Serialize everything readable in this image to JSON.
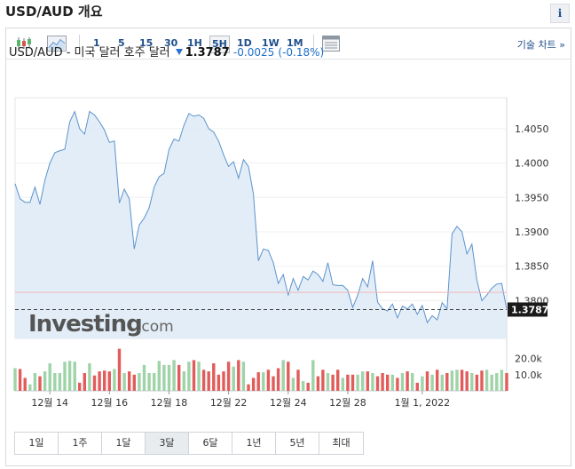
{
  "header": {
    "title": "USD/AUD 개요",
    "info_label": "i"
  },
  "toolbar": {
    "timeframes": [
      "1",
      "5",
      "15",
      "30",
      "1H",
      "5H",
      "1D",
      "1W",
      "1M"
    ],
    "active_timeframe": "5H",
    "tech_chart_label": "기술 차트 »"
  },
  "quote": {
    "name": "USD/AUD - 미국 달러 호주 달러",
    "price": "1.3787",
    "change": "-0.0025",
    "change_pct": "(-0.18%)",
    "down_color": "#2b6fcf"
  },
  "watermark": {
    "brand": "Investing",
    "suffix": ".com"
  },
  "ranges": {
    "items": [
      "1일",
      "1주",
      "1달",
      "3달",
      "6달",
      "1년",
      "5년",
      "최대"
    ],
    "active": "3달"
  },
  "chart_data": {
    "type": "area",
    "title": "",
    "xlabel": "",
    "ylabel": "",
    "ylim": [
      1.3745,
      1.4095
    ],
    "y_ticks": [
      1.38,
      1.385,
      1.39,
      1.395,
      1.4,
      1.405
    ],
    "y_tick_labels": [
      "1.3800",
      "1.3850",
      "1.3900",
      "1.3950",
      "1.4000",
      "1.4050"
    ],
    "x_tick_labels": [
      "12월 14",
      "12월 16",
      "12월 18",
      "12월 22",
      "12월 24",
      "12월 28",
      "1월 1, 2022"
    ],
    "x_tick_index": [
      7,
      19,
      31,
      43,
      55,
      67,
      82
    ],
    "current_price": 1.3787,
    "previous_close": 1.3812,
    "grid": true,
    "values": [
      1.397,
      1.3948,
      1.3943,
      1.3943,
      1.3965,
      1.394,
      1.3975,
      1.4,
      1.4015,
      1.4018,
      1.402,
      1.406,
      1.4075,
      1.405,
      1.4042,
      1.4075,
      1.407,
      1.406,
      1.4048,
      1.403,
      1.4032,
      1.3942,
      1.3962,
      1.3948,
      1.3875,
      1.391,
      1.392,
      1.3935,
      1.3965,
      1.398,
      1.3985,
      1.402,
      1.4035,
      1.4032,
      1.4055,
      1.4072,
      1.4068,
      1.407,
      1.4065,
      1.405,
      1.4045,
      1.4032,
      1.4012,
      1.3995,
      1.4002,
      1.3978,
      1.4005,
      1.3995,
      1.3955,
      1.3858,
      1.3875,
      1.3873,
      1.3855,
      1.3825,
      1.3838,
      1.3808,
      1.3832,
      1.3815,
      1.3835,
      1.383,
      1.3843,
      1.3838,
      1.3828,
      1.3855,
      1.3823,
      1.3822,
      1.3822,
      1.3815,
      1.379,
      1.3808,
      1.3832,
      1.382,
      1.3858,
      1.3798,
      1.3788,
      1.3785,
      1.3795,
      1.3775,
      1.3792,
      1.3788,
      1.3795,
      1.378,
      1.3793,
      1.3768,
      1.3778,
      1.3772,
      1.3797,
      1.3788,
      1.3897,
      1.3908,
      1.39,
      1.3868,
      1.3882,
      1.383,
      1.38,
      1.3808,
      1.3818,
      1.3824,
      1.3825,
      1.3788
    ],
    "volume": {
      "ylim": [
        0,
        28000
      ],
      "y_ticks": [
        10000,
        20000
      ],
      "y_tick_labels": [
        "10.0k",
        "20.0k"
      ],
      "values": [
        14000,
        13500,
        8000,
        4000,
        11000,
        9000,
        12000,
        17000,
        11000,
        11000,
        18000,
        18500,
        18000,
        5000,
        11000,
        17000,
        9500,
        12000,
        12500,
        12000,
        13500,
        26000,
        11000,
        12000,
        10000,
        11000,
        16000,
        11000,
        11000,
        18500,
        16000,
        16000,
        19000,
        16000,
        12000,
        18000,
        19000,
        18000,
        13000,
        12000,
        17000,
        10000,
        12000,
        18000,
        15000,
        19000,
        18000,
        4000,
        8000,
        11500,
        11500,
        13000,
        9000,
        14000,
        19000,
        18000,
        8000,
        13000,
        6000,
        5000,
        19000,
        9000,
        13000,
        11000,
        10000,
        13000,
        8000,
        10000,
        10000,
        10000,
        12000,
        12000,
        11000,
        9000,
        11000,
        10000,
        10000,
        8000,
        11000,
        12000,
        11000,
        5000,
        9000,
        12000,
        10000,
        13000,
        10000,
        11000,
        12500,
        13000,
        13000,
        12000,
        11000,
        10000,
        12500,
        13000,
        10000,
        11000,
        13000,
        11000
      ],
      "up_color": "#9fd3a8",
      "down_color": "#e25c5c"
    }
  }
}
